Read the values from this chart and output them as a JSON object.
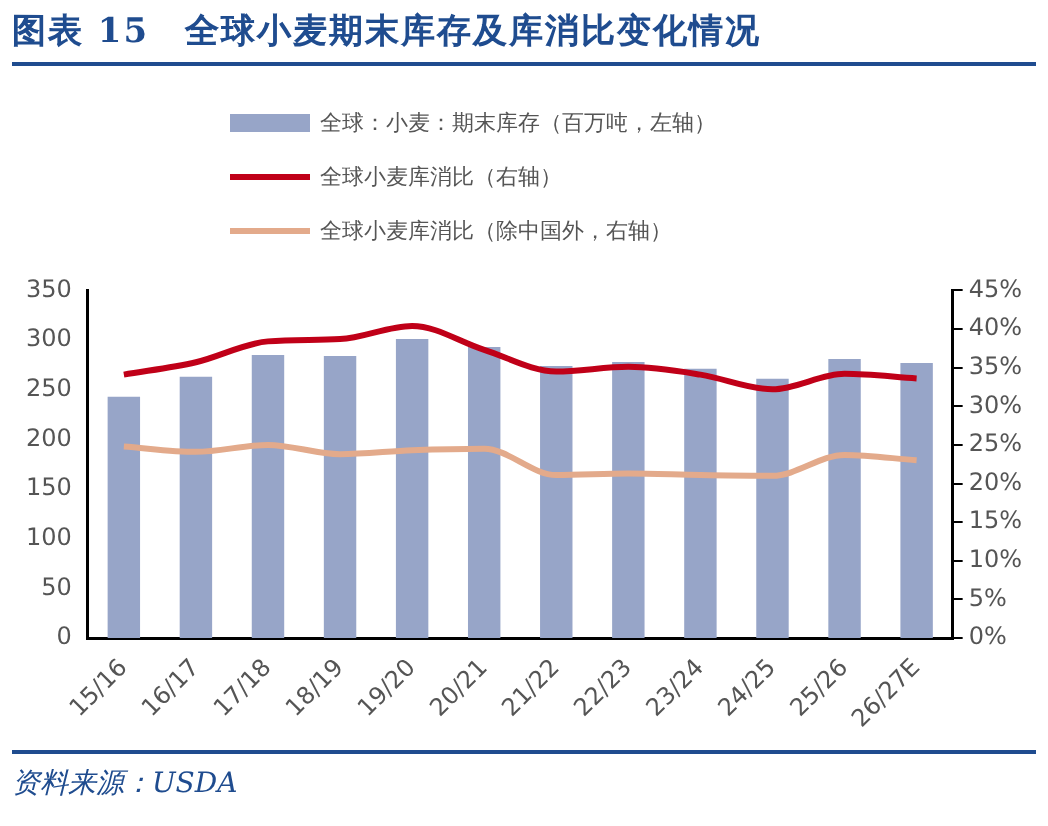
{
  "chart_data": {
    "type": "bar",
    "title": "图表 15　全球小麦期末库存及库消比变化情况",
    "annotations": [
      "资料来源：USDA"
    ],
    "categories": [
      "15/16",
      "16/17",
      "17/18",
      "18/19",
      "19/20",
      "20/21",
      "21/22",
      "22/23",
      "23/24",
      "24/25",
      "25/26",
      "26/27E"
    ],
    "series": [
      {
        "name": "全球：小麦：期末库存（百万吨，左轴）",
        "color": "#97a5c8",
        "values": [
          243,
          263,
          285,
          284,
          301,
          293,
          274,
          278,
          271,
          261,
          281,
          277
        ]
      },
      {
        "name": "全球小麦库消比（右轴）",
        "type": "line",
        "axis": "y2",
        "color": "#c00018",
        "values": [
          34.1,
          35.7,
          38.4,
          38.7,
          40.4,
          37.3,
          34.5,
          35.1,
          34.1,
          32.2,
          34.2,
          33.6
        ]
      },
      {
        "name": "全球小麦库消比（除中国外，右轴）",
        "type": "line",
        "axis": "y2",
        "color": "#e3aa8b",
        "values": [
          24.8,
          24.1,
          25.0,
          23.8,
          24.3,
          24.5,
          21.1,
          21.3,
          21.1,
          21.0,
          23.7,
          23.0
        ]
      }
    ],
    "ylim": [
      0,
      350
    ],
    "yticks": [
      0,
      50,
      100,
      150,
      200,
      250,
      300,
      350
    ],
    "y2lim": [
      0,
      45
    ],
    "y2ticks": [
      {
        "value": 0,
        "label": "0%"
      },
      {
        "value": 5,
        "label": "5%"
      },
      {
        "value": 10,
        "label": "10%"
      },
      {
        "value": 15,
        "label": "15%"
      },
      {
        "value": 20,
        "label": "20%"
      },
      {
        "value": 25,
        "label": "25%"
      },
      {
        "value": 30,
        "label": "30%"
      },
      {
        "value": 35,
        "label": "35%"
      },
      {
        "value": 40,
        "label": "40%"
      },
      {
        "value": 45,
        "label": "45%"
      }
    ],
    "grid": false,
    "legend": "top",
    "marker": "none"
  }
}
